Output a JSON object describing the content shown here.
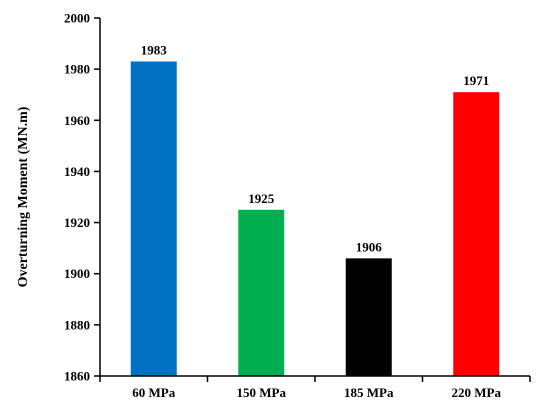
{
  "chart_data": {
    "type": "bar",
    "categories": [
      "60 MPa",
      "150 MPa",
      "185 MPa",
      "220 MPa"
    ],
    "values": [
      1983,
      1925,
      1906,
      1971
    ],
    "data_labels": [
      "1983",
      "1925",
      "1906",
      "1971"
    ],
    "colors": [
      "#0070c0",
      "#00b050",
      "#000000",
      "#ff0000"
    ],
    "title": "",
    "xlabel": "",
    "ylabel": "Overturning Moment  (MN.m)",
    "ylim": [
      1860,
      2000
    ],
    "yticks": [
      1860,
      1880,
      1900,
      1920,
      1940,
      1960,
      1980,
      2000
    ],
    "ytick_labels": [
      "1860",
      "1880",
      "1900",
      "1920",
      "1940",
      "1960",
      "1980",
      "2000"
    ],
    "grid": false,
    "legend": "none"
  }
}
